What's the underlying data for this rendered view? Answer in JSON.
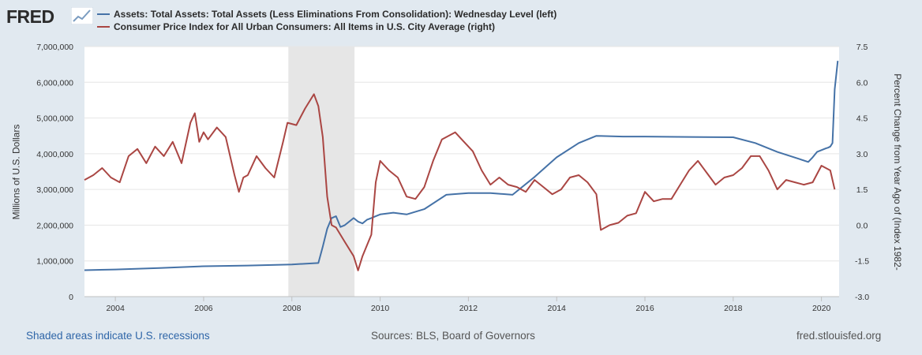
{
  "header": {
    "logo_text": "FRED",
    "logo_icon": "fred-chart-logo-icon"
  },
  "legend": {
    "series1_label": "Assets: Total Assets: Total Assets (Less Eliminations From Consolidation): Wednesday Level (left)",
    "series2_label": "Consumer Price Index for All Urban Consumers: All Items in U.S. City Average (right)"
  },
  "footer": {
    "recession_note": "Shaded areas indicate U.S. recessions",
    "sources": "Sources: BLS, Board of Governors",
    "site": "fred.stlouisfed.org"
  },
  "colors": {
    "series1": "#4572a7",
    "series2": "#aa4643",
    "recession": "#e6e6e6",
    "grid": "#e6e6e6",
    "background": "#e1e9f0"
  },
  "chart_data": {
    "type": "line",
    "title": "",
    "xlabel": "",
    "ylabel_left": "Millions of U.S. Dollars",
    "ylabel_right": "Percent Change from Year Ago of (Index 1982-",
    "xlim": [
      2003.3,
      2020.4
    ],
    "ylim_left": [
      0,
      7000000
    ],
    "ylim_right": [
      -3.0,
      7.5
    ],
    "x_ticks": [
      "2004",
      "2006",
      "2008",
      "2010",
      "2012",
      "2014",
      "2016",
      "2018",
      "2020"
    ],
    "y_ticks_left": [
      "0",
      "1,000,000",
      "2,000,000",
      "3,000,000",
      "4,000,000",
      "5,000,000",
      "6,000,000",
      "7,000,000"
    ],
    "y_ticks_right": [
      "-3.0",
      "-1.5",
      "0.0",
      "1.5",
      "3.0",
      "4.5",
      "6.0",
      "7.5"
    ],
    "grid": true,
    "recessions": [
      [
        2007.92,
        2009.42
      ]
    ],
    "series": [
      {
        "name": "Assets: Total Assets: Total Assets (Less Eliminations From Consolidation): Wednesday Level (left)",
        "axis": "left",
        "x": [
          2003.3,
          2004.0,
          2005.0,
          2006.0,
          2007.0,
          2008.0,
          2008.6,
          2008.7,
          2008.8,
          2008.9,
          2009.0,
          2009.1,
          2009.2,
          2009.3,
          2009.4,
          2009.5,
          2009.6,
          2009.7,
          2009.8,
          2009.9,
          2010.0,
          2010.3,
          2010.6,
          2011.0,
          2011.5,
          2011.7,
          2012.0,
          2012.5,
          2013.0,
          2013.5,
          2014.0,
          2014.5,
          2014.9,
          2015.5,
          2016.0,
          2017.0,
          2018.0,
          2018.5,
          2019.0,
          2019.5,
          2019.7,
          2019.8,
          2019.9,
          2020.0,
          2020.1,
          2020.15,
          2020.2,
          2020.25,
          2020.3,
          2020.37
        ],
        "values": [
          740000,
          760000,
          800000,
          850000,
          870000,
          900000,
          940000,
          1400000,
          1900000,
          2200000,
          2250000,
          1950000,
          2000000,
          2100000,
          2200000,
          2100000,
          2050000,
          2150000,
          2200000,
          2250000,
          2300000,
          2350000,
          2300000,
          2450000,
          2850000,
          2870000,
          2900000,
          2900000,
          2850000,
          3350000,
          3900000,
          4300000,
          4500000,
          4480000,
          4480000,
          4470000,
          4460000,
          4300000,
          4050000,
          3850000,
          3770000,
          3900000,
          4050000,
          4100000,
          4150000,
          4170000,
          4200000,
          4300000,
          5800000,
          6600000
        ]
      },
      {
        "name": "Consumer Price Index for All Urban Consumers: All Items in U.S. City Average (right)",
        "axis": "right",
        "x": [
          2003.3,
          2003.5,
          2003.7,
          2003.9,
          2004.1,
          2004.3,
          2004.5,
          2004.7,
          2004.9,
          2005.1,
          2005.3,
          2005.5,
          2005.7,
          2005.8,
          2005.9,
          2006.0,
          2006.1,
          2006.3,
          2006.5,
          2006.7,
          2006.8,
          2006.9,
          2007.0,
          2007.2,
          2007.4,
          2007.6,
          2007.8,
          2007.9,
          2008.1,
          2008.3,
          2008.5,
          2008.6,
          2008.7,
          2008.8,
          2008.9,
          2009.0,
          2009.2,
          2009.4,
          2009.5,
          2009.6,
          2009.8,
          2009.9,
          2010.0,
          2010.2,
          2010.4,
          2010.6,
          2010.8,
          2011.0,
          2011.2,
          2011.4,
          2011.6,
          2011.7,
          2011.9,
          2012.1,
          2012.3,
          2012.5,
          2012.7,
          2012.9,
          2013.1,
          2013.3,
          2013.5,
          2013.7,
          2013.9,
          2014.1,
          2014.3,
          2014.5,
          2014.7,
          2014.9,
          2015.0,
          2015.2,
          2015.4,
          2015.6,
          2015.8,
          2016.0,
          2016.2,
          2016.4,
          2016.6,
          2016.8,
          2017.0,
          2017.2,
          2017.4,
          2017.6,
          2017.8,
          2018.0,
          2018.2,
          2018.4,
          2018.6,
          2018.8,
          2019.0,
          2019.2,
          2019.4,
          2019.6,
          2019.8,
          2020.0,
          2020.2,
          2020.3
        ],
        "values": [
          1.9,
          2.1,
          2.4,
          2.0,
          1.8,
          2.9,
          3.2,
          2.6,
          3.3,
          2.9,
          3.5,
          2.6,
          4.3,
          4.7,
          3.5,
          3.9,
          3.6,
          4.1,
          3.7,
          2.1,
          1.4,
          2.0,
          2.1,
          2.9,
          2.4,
          2.0,
          3.5,
          4.3,
          4.2,
          4.9,
          5.5,
          5.0,
          3.7,
          1.2,
          0.0,
          -0.1,
          -0.7,
          -1.3,
          -1.9,
          -1.3,
          -0.4,
          1.8,
          2.7,
          2.3,
          2.0,
          1.2,
          1.1,
          1.6,
          2.7,
          3.6,
          3.8,
          3.9,
          3.5,
          3.1,
          2.3,
          1.7,
          2.0,
          1.7,
          1.6,
          1.4,
          1.9,
          1.6,
          1.3,
          1.5,
          2.0,
          2.1,
          1.8,
          1.3,
          -0.2,
          0.0,
          0.1,
          0.4,
          0.5,
          1.4,
          1.0,
          1.1,
          1.1,
          1.7,
          2.3,
          2.7,
          2.2,
          1.7,
          2.0,
          2.1,
          2.4,
          2.9,
          2.9,
          2.3,
          1.5,
          1.9,
          1.8,
          1.7,
          1.8,
          2.5,
          2.3,
          1.5
        ]
      }
    ]
  }
}
